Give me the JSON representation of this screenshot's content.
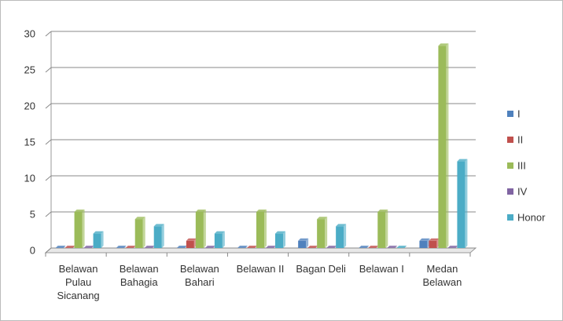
{
  "chart_data": {
    "type": "bar",
    "categories": [
      "Belawan Pulau Sicanang",
      "Belawan Bahagia",
      "Belawan Bahari",
      "Belawan II",
      "Bagan Deli",
      "Belawan I",
      "Medan Belawan"
    ],
    "series": [
      {
        "name": "I",
        "color": "#4f81bd",
        "values": [
          0,
          0,
          0,
          0,
          1,
          0,
          1
        ]
      },
      {
        "name": "II",
        "color": "#c0504d",
        "values": [
          0,
          0,
          1,
          0,
          0,
          0,
          1
        ]
      },
      {
        "name": "III",
        "color": "#9bbb59",
        "values": [
          5,
          4,
          5,
          5,
          4,
          5,
          28
        ]
      },
      {
        "name": "IV",
        "color": "#8064a2",
        "values": [
          0,
          0,
          0,
          0,
          0,
          0,
          0
        ]
      },
      {
        "name": "Honor",
        "color": "#4bacc6",
        "values": [
          2,
          3,
          2,
          2,
          3,
          0,
          12
        ]
      }
    ],
    "ylim": [
      0,
      30
    ],
    "yticks": [
      0,
      5,
      10,
      15,
      20,
      25,
      30
    ],
    "grid": true,
    "legend": "right"
  }
}
